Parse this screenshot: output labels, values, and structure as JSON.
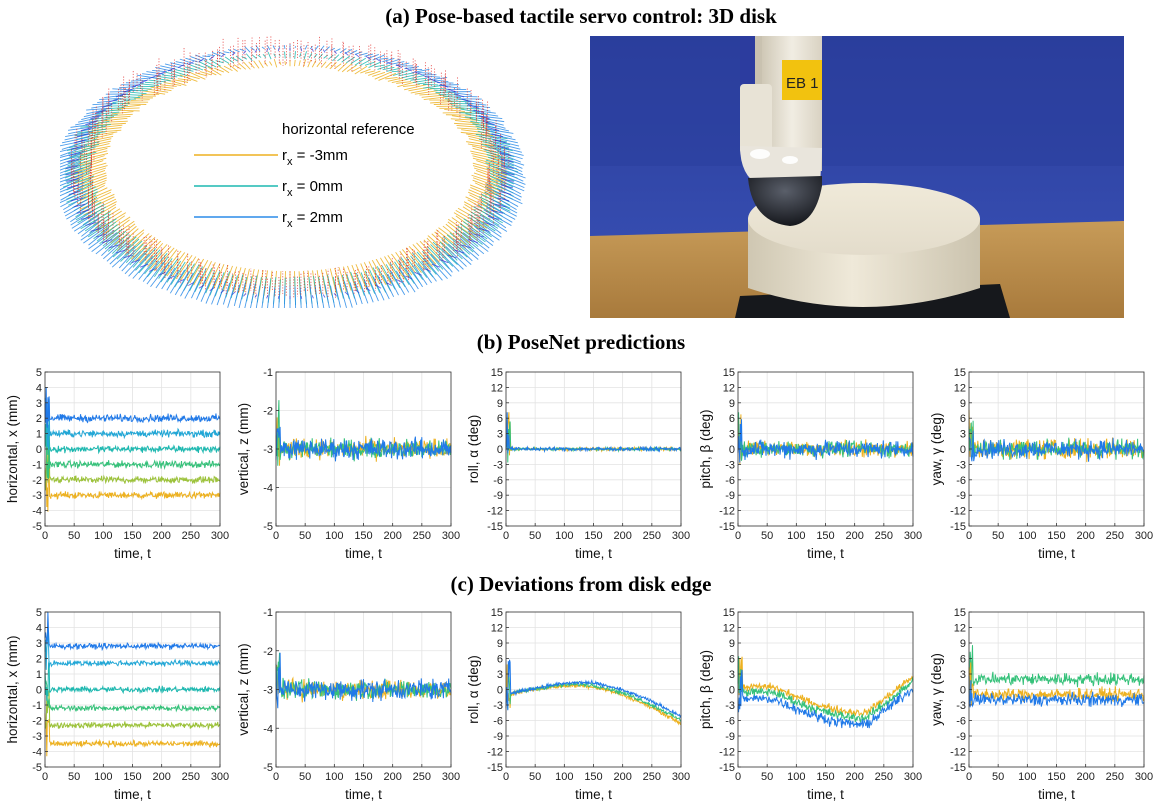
{
  "titles": {
    "a": "(a) Pose-based tactile servo control: 3D disk",
    "b": "(b) PoseNet predictions",
    "c": "(c) Deviations from disk edge"
  },
  "colors": {
    "yellow": "#EDB120",
    "yellowgreen": "#9CC23A",
    "green": "#36C17A",
    "teal": "#1DB8B0",
    "cyan": "#22A7D6",
    "blue": "#2079E8",
    "darkblue": "#2B2BD8",
    "red": "#E0201F"
  },
  "disk": {
    "legend_title": "horizontal reference",
    "legend": [
      {
        "label": "r",
        "sub": "x",
        "value": " = -3mm",
        "color": "#EDB120"
      },
      {
        "label": "r",
        "sub": "x",
        "value": " = 0mm",
        "color": "#1DB8B0"
      },
      {
        "label": "r",
        "sub": "x",
        "value": " = 2mm",
        "color": "#2B8BE8"
      }
    ]
  },
  "photo": {
    "label_text": "EB 1"
  },
  "chart_data": [
    {
      "id": "b1",
      "type": "line",
      "xlabel": "time, t",
      "ylabel": "horizontal, x (mm)",
      "xlim": [
        0,
        300
      ],
      "ylim": [
        -5,
        5
      ],
      "xticks": [
        0,
        50,
        100,
        150,
        200,
        250,
        300
      ],
      "yticks": [
        -5,
        -4,
        -3,
        -2,
        -1,
        0,
        1,
        2,
        3,
        4,
        5
      ],
      "grid": true,
      "series": [
        {
          "level": -3,
          "noise": 0.18,
          "color": "#EDB120"
        },
        {
          "level": -2,
          "noise": 0.18,
          "color": "#9CC23A"
        },
        {
          "level": -1,
          "noise": 0.18,
          "color": "#36C17A"
        },
        {
          "level": 0,
          "noise": 0.18,
          "color": "#1DB8B0"
        },
        {
          "level": 1,
          "noise": 0.18,
          "color": "#22A7D6"
        },
        {
          "level": 2,
          "noise": 0.2,
          "color": "#2079E8"
        }
      ]
    },
    {
      "id": "b2",
      "type": "line",
      "xlabel": "time, t",
      "ylabel": "vertical, z (mm)",
      "xlim": [
        0,
        300
      ],
      "ylim": [
        -5,
        -1
      ],
      "xticks": [
        0,
        50,
        100,
        150,
        200,
        250,
        300
      ],
      "yticks": [
        -5,
        -4,
        -3,
        -2,
        -1
      ],
      "grid": true,
      "series": [
        {
          "level": -3,
          "noise": 0.2,
          "color": "#EDB120"
        },
        {
          "level": -3,
          "noise": 0.2,
          "color": "#36C17A"
        },
        {
          "level": -3,
          "noise": 0.22,
          "color": "#2079E8"
        }
      ]
    },
    {
      "id": "b3",
      "type": "line",
      "xlabel": "time, t",
      "ylabel": "roll, α (deg)",
      "xlim": [
        0,
        300
      ],
      "ylim": [
        -15,
        15
      ],
      "xticks": [
        0,
        50,
        100,
        150,
        200,
        250,
        300
      ],
      "yticks": [
        -15,
        -12,
        -9,
        -6,
        -3,
        0,
        3,
        6,
        9,
        12,
        15
      ],
      "grid": true,
      "series": [
        {
          "level": 0,
          "noise": 0.25,
          "color": "#EDB120"
        },
        {
          "level": 0,
          "noise": 0.25,
          "color": "#36C17A"
        },
        {
          "level": 0,
          "noise": 0.3,
          "color": "#2079E8"
        }
      ]
    },
    {
      "id": "b4",
      "type": "line",
      "xlabel": "time, t",
      "ylabel": "pitch, β (deg)",
      "xlim": [
        0,
        300
      ],
      "ylim": [
        -15,
        15
      ],
      "xticks": [
        0,
        50,
        100,
        150,
        200,
        250,
        300
      ],
      "yticks": [
        -15,
        -12,
        -9,
        -6,
        -3,
        0,
        3,
        6,
        9,
        12,
        15
      ],
      "grid": true,
      "series": [
        {
          "level": 0,
          "noise": 1.2,
          "color": "#EDB120"
        },
        {
          "level": 0,
          "noise": 1.2,
          "color": "#36C17A"
        },
        {
          "level": 0,
          "noise": 1.4,
          "color": "#2079E8"
        }
      ]
    },
    {
      "id": "b5",
      "type": "line",
      "xlabel": "time, t",
      "ylabel": "yaw, γ (deg)",
      "xlim": [
        0,
        300
      ],
      "ylim": [
        -15,
        15
      ],
      "xticks": [
        0,
        50,
        100,
        150,
        200,
        250,
        300
      ],
      "yticks": [
        -15,
        -12,
        -9,
        -6,
        -3,
        0,
        3,
        6,
        9,
        12,
        15
      ],
      "grid": true,
      "series": [
        {
          "level": 0,
          "noise": 1.6,
          "color": "#EDB120"
        },
        {
          "level": 0,
          "noise": 1.5,
          "color": "#36C17A"
        },
        {
          "level": 0,
          "noise": 1.5,
          "color": "#2079E8"
        }
      ]
    },
    {
      "id": "c1",
      "type": "line",
      "xlabel": "time, t",
      "ylabel": "horizontal, x (mm)",
      "xlim": [
        0,
        300
      ],
      "ylim": [
        -5,
        5
      ],
      "xticks": [
        0,
        50,
        100,
        150,
        200,
        250,
        300
      ],
      "yticks": [
        -5,
        -4,
        -3,
        -2,
        -1,
        0,
        1,
        2,
        3,
        4,
        5
      ],
      "grid": true,
      "series": [
        {
          "level": -3.5,
          "noise": 0.15,
          "color": "#EDB120"
        },
        {
          "level": -2.3,
          "noise": 0.15,
          "color": "#9CC23A"
        },
        {
          "level": -1.2,
          "noise": 0.15,
          "color": "#36C17A"
        },
        {
          "level": 0,
          "noise": 0.15,
          "color": "#1DB8B0"
        },
        {
          "level": 1.7,
          "noise": 0.15,
          "color": "#22A7D6"
        },
        {
          "level": 2.8,
          "noise": 0.15,
          "color": "#2079E8"
        }
      ]
    },
    {
      "id": "c2",
      "type": "line",
      "xlabel": "time, t",
      "ylabel": "vertical, z (mm)",
      "xlim": [
        0,
        300
      ],
      "ylim": [
        -5,
        -1
      ],
      "xticks": [
        0,
        50,
        100,
        150,
        200,
        250,
        300
      ],
      "yticks": [
        -5,
        -4,
        -3,
        -2,
        -1
      ],
      "grid": true,
      "series": [
        {
          "level": -3,
          "noise": 0.2,
          "color": "#EDB120"
        },
        {
          "level": -3,
          "noise": 0.2,
          "color": "#36C17A"
        },
        {
          "level": -3,
          "noise": 0.22,
          "color": "#2079E8"
        }
      ]
    },
    {
      "id": "c3",
      "type": "line",
      "xlabel": "time, t",
      "ylabel": "roll, α (deg)",
      "xlim": [
        0,
        300
      ],
      "ylim": [
        -15,
        15
      ],
      "xticks": [
        0,
        50,
        100,
        150,
        200,
        250,
        300
      ],
      "yticks": [
        -15,
        -12,
        -9,
        -6,
        -3,
        0,
        3,
        6,
        9,
        12,
        15
      ],
      "grid": true,
      "series": [
        {
          "shape": "roll",
          "offset": -6,
          "noise": 0.3,
          "color": "#EDB120"
        },
        {
          "shape": "roll",
          "offset": 0,
          "noise": 0.3,
          "color": "#36C17A"
        },
        {
          "shape": "roll",
          "offset": 8,
          "noise": 0.3,
          "color": "#2079E8"
        }
      ]
    },
    {
      "id": "c4",
      "type": "line",
      "xlabel": "time, t",
      "ylabel": "pitch, β (deg)",
      "xlim": [
        0,
        300
      ],
      "ylim": [
        -15,
        15
      ],
      "xticks": [
        0,
        50,
        100,
        150,
        200,
        250,
        300
      ],
      "yticks": [
        -15,
        -12,
        -9,
        -6,
        -3,
        0,
        3,
        6,
        9,
        12,
        15
      ],
      "grid": true,
      "series": [
        {
          "shape": "pitch",
          "offset": 0.5,
          "noise": 0.6,
          "color": "#EDB120"
        },
        {
          "shape": "pitch",
          "offset": -0.5,
          "noise": 0.7,
          "color": "#36C17A"
        },
        {
          "shape": "pitch",
          "offset": -1.8,
          "noise": 0.8,
          "color": "#2079E8"
        }
      ]
    },
    {
      "id": "c5",
      "type": "line",
      "xlabel": "time, t",
      "ylabel": "yaw, γ (deg)",
      "xlim": [
        0,
        300
      ],
      "ylim": [
        -15,
        15
      ],
      "xticks": [
        0,
        50,
        100,
        150,
        200,
        250,
        300
      ],
      "yticks": [
        -15,
        -12,
        -9,
        -6,
        -3,
        0,
        3,
        6,
        9,
        12,
        15
      ],
      "grid": true,
      "series": [
        {
          "level": 2,
          "noise": 1.0,
          "color": "#36C17A"
        },
        {
          "level": -1,
          "noise": 1.0,
          "color": "#EDB120"
        },
        {
          "level": -2,
          "noise": 1.0,
          "color": "#2079E8"
        }
      ]
    }
  ]
}
